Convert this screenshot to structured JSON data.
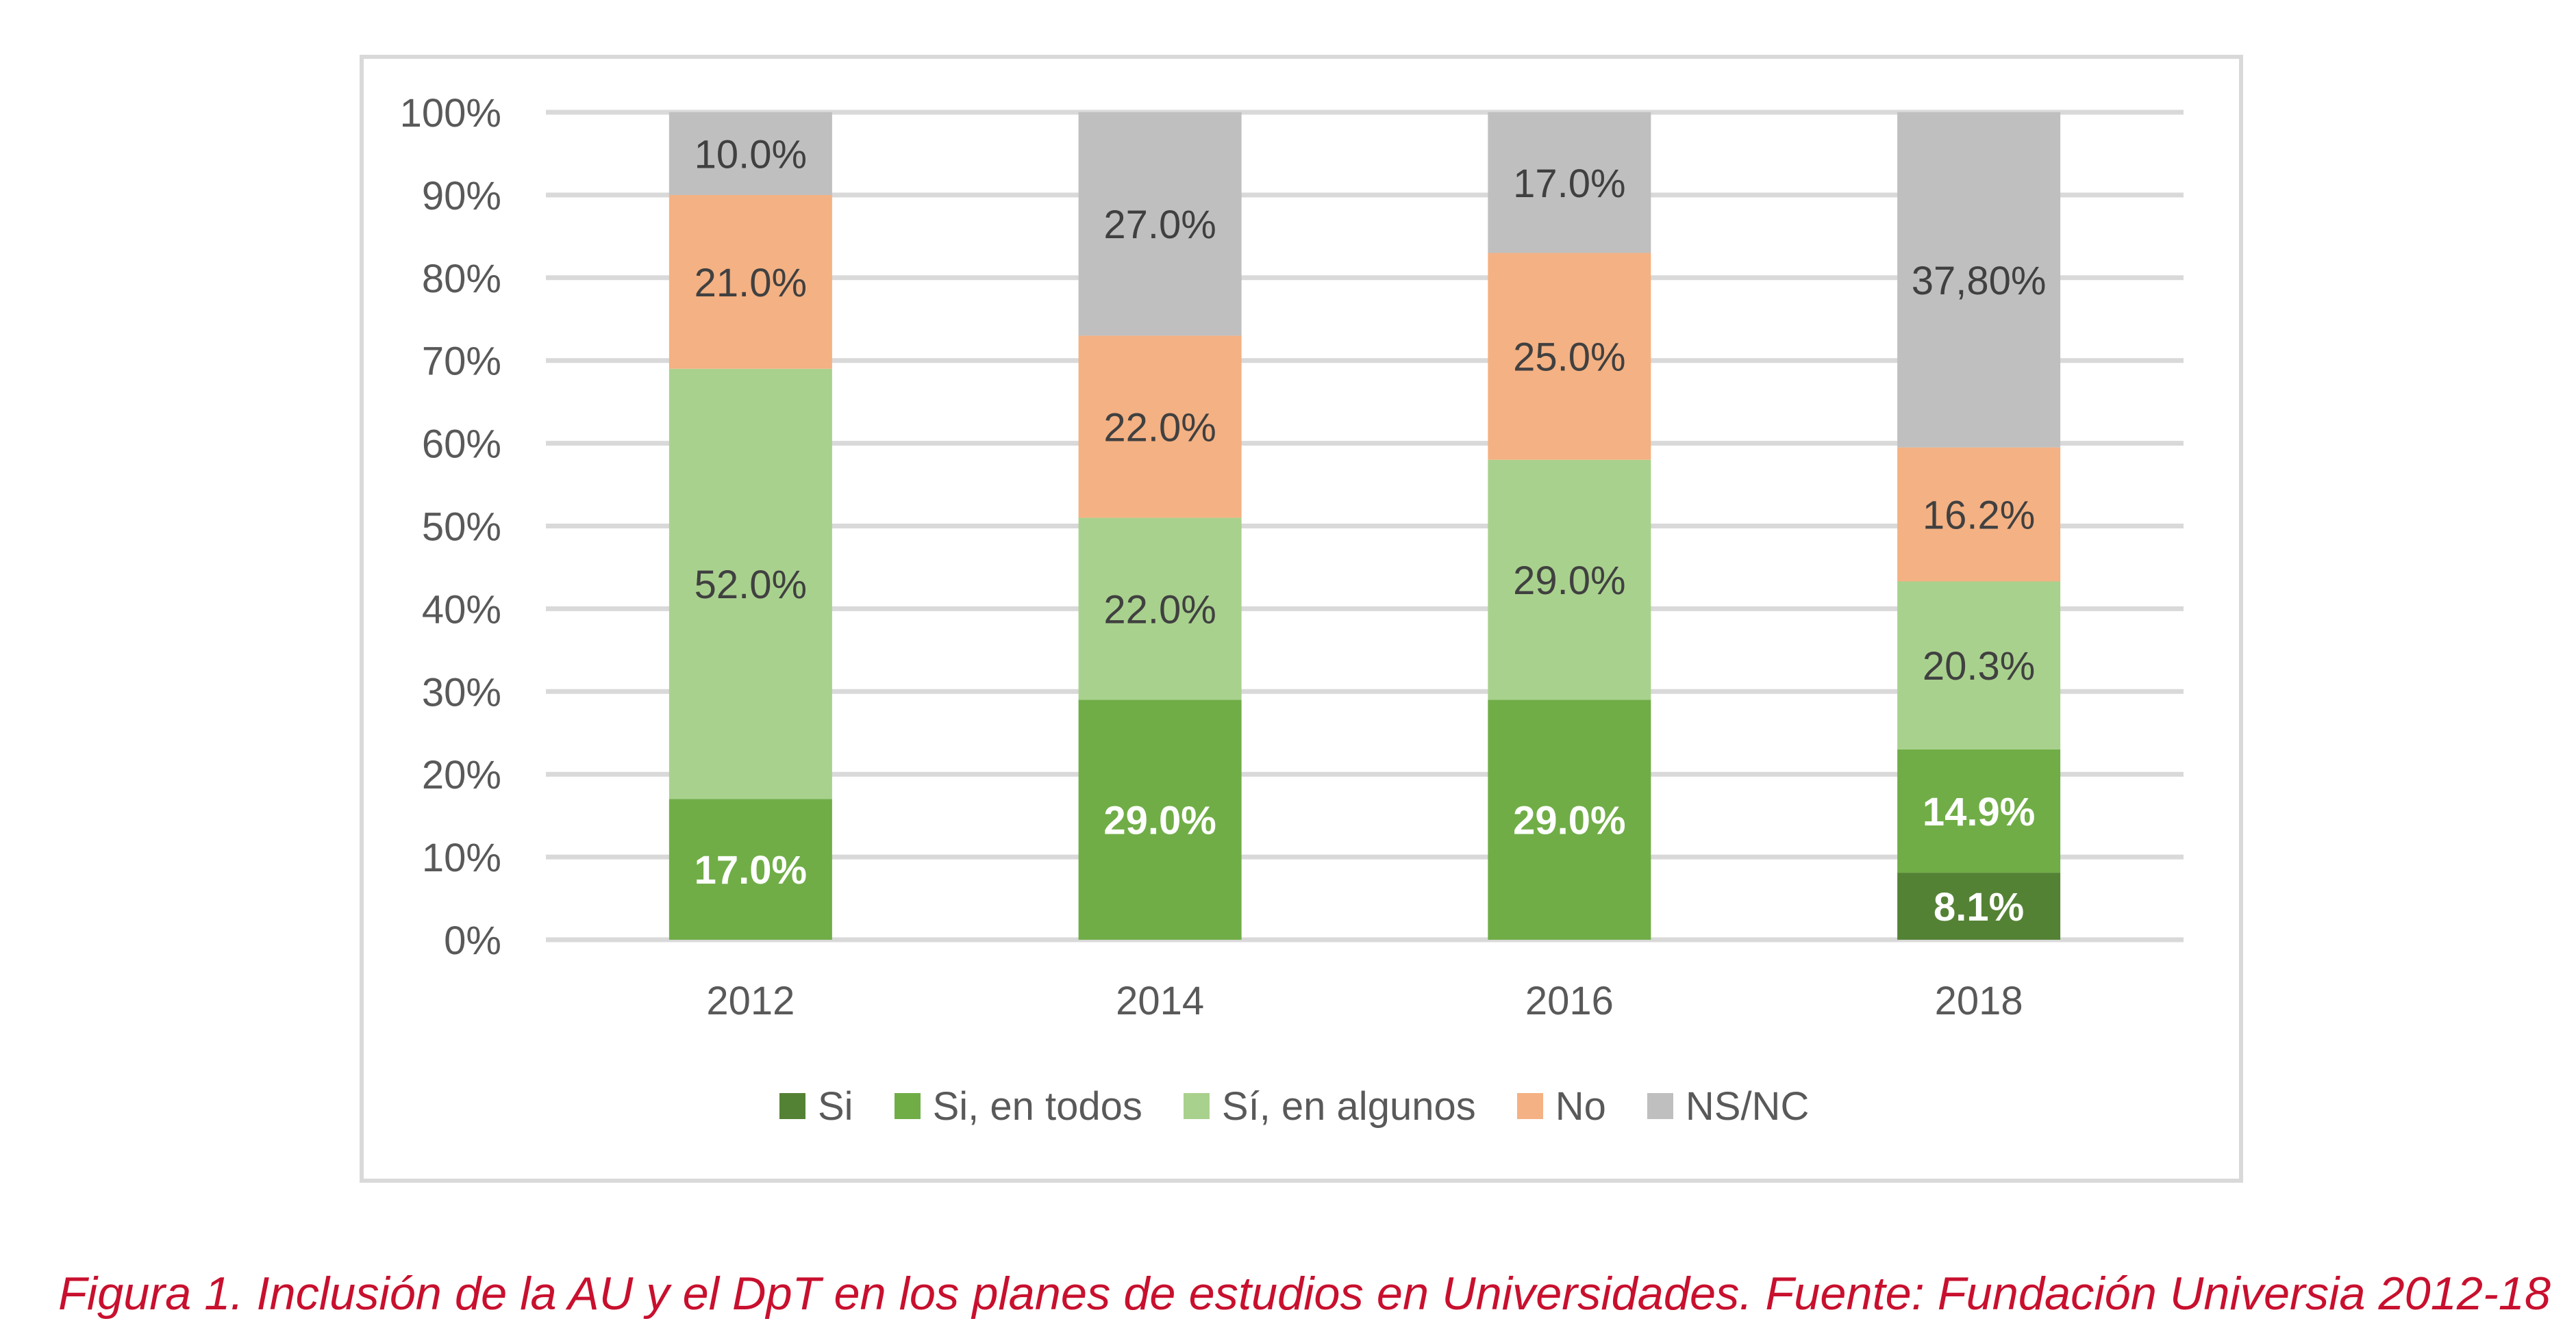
{
  "figure": {
    "caption": "Figura 1. Inclusión de la AU y el DpT en los planes de estudios en Universidades. Fuente: Fundación Universia 2012-18",
    "caption_color": "#c8102e"
  },
  "chart_data": {
    "type": "bar",
    "stacked": true,
    "title": "",
    "xlabel": "",
    "ylabel": "",
    "categories": [
      "2012",
      "2014",
      "2016",
      "2018"
    ],
    "ylim": [
      0,
      100
    ],
    "yticks": [
      0,
      10,
      20,
      30,
      40,
      50,
      60,
      70,
      80,
      90,
      100
    ],
    "ytick_labels": [
      "0%",
      "10%",
      "20%",
      "30%",
      "40%",
      "50%",
      "60%",
      "70%",
      "80%",
      "90%",
      "100%"
    ],
    "grid": true,
    "legend_position": "bottom",
    "top_segment_fills_to_100": true,
    "series": [
      {
        "name": "Si",
        "color": "#548235",
        "label_color": "#ffffff",
        "label_bold": true,
        "values": [
          null,
          null,
          null,
          8.1
        ],
        "labels": [
          null,
          null,
          null,
          "8.1%"
        ]
      },
      {
        "name": "Si, en todos",
        "color": "#70ad47",
        "label_color": "#ffffff",
        "label_bold": true,
        "values": [
          17.0,
          29.0,
          29.0,
          14.9
        ],
        "labels": [
          "17.0%",
          "29.0%",
          "29.0%",
          "14.9%"
        ]
      },
      {
        "name": "Sí, en algunos",
        "color": "#a9d18e",
        "label_color": "#404040",
        "label_bold": false,
        "values": [
          52.0,
          22.0,
          29.0,
          20.3
        ],
        "labels": [
          "52.0%",
          "22.0%",
          "29.0%",
          "20.3%"
        ]
      },
      {
        "name": "No",
        "color": "#f4b183",
        "label_color": "#404040",
        "label_bold": false,
        "values": [
          21.0,
          22.0,
          25.0,
          16.2
        ],
        "labels": [
          "21.0%",
          "22.0%",
          "25.0%",
          "16.2%"
        ]
      },
      {
        "name": "NS/NC",
        "color": "#bfbfbf",
        "label_color": "#404040",
        "label_bold": false,
        "values": [
          10.0,
          27.0,
          17.0,
          37.8
        ],
        "labels": [
          "10.0%",
          "27.0%",
          "17.0%",
          "37,80%"
        ]
      }
    ],
    "colors": {
      "grid": "#d9d9d9",
      "axis_text": "#595959",
      "frame": "#d9d9d9"
    }
  }
}
